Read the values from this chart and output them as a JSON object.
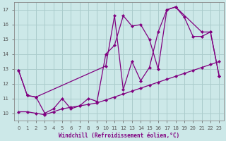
{
  "xlabel": "Windchill (Refroidissement éolien,°C)",
  "background_color": "#cce8e8",
  "grid_color": "#aacccc",
  "line_color": "#800080",
  "xlim": [
    -0.5,
    23.5
  ],
  "ylim": [
    9.5,
    17.5
  ],
  "yticks": [
    10,
    11,
    12,
    13,
    14,
    15,
    16,
    17
  ],
  "xticks": [
    0,
    1,
    2,
    3,
    4,
    5,
    6,
    7,
    8,
    9,
    10,
    11,
    12,
    13,
    14,
    15,
    16,
    17,
    18,
    19,
    20,
    21,
    22,
    23
  ],
  "series1_x": [
    0,
    1,
    2,
    3,
    4,
    5,
    6,
    7,
    8,
    9,
    10,
    11,
    12,
    13,
    14,
    15,
    16,
    17,
    18,
    19,
    20,
    21,
    22,
    23
  ],
  "series1_y": [
    12.9,
    11.2,
    11.1,
    10.0,
    10.3,
    11.0,
    10.3,
    10.5,
    11.0,
    10.8,
    14.0,
    14.6,
    16.6,
    15.9,
    16.0,
    15.0,
    13.0,
    17.0,
    17.2,
    16.5,
    15.2,
    15.2,
    15.5,
    12.5
  ],
  "series2_x": [
    0,
    1,
    2,
    10,
    11,
    12,
    13,
    14,
    15,
    16,
    17,
    18,
    21,
    22,
    23
  ],
  "series2_y": [
    12.9,
    11.2,
    11.1,
    13.2,
    16.6,
    11.6,
    13.5,
    12.2,
    13.1,
    15.5,
    17.0,
    17.2,
    15.5,
    15.5,
    12.5
  ],
  "series3_x": [
    0,
    1,
    2,
    3,
    4,
    5,
    6,
    7,
    8,
    9,
    10,
    11,
    12,
    13,
    14,
    15,
    16,
    17,
    18,
    19,
    20,
    21,
    22,
    23
  ],
  "series3_y": [
    10.1,
    10.1,
    10.0,
    9.9,
    10.1,
    10.3,
    10.4,
    10.5,
    10.6,
    10.7,
    10.9,
    11.1,
    11.3,
    11.5,
    11.7,
    11.9,
    12.1,
    12.3,
    12.5,
    12.7,
    12.9,
    13.1,
    13.3,
    13.5
  ]
}
